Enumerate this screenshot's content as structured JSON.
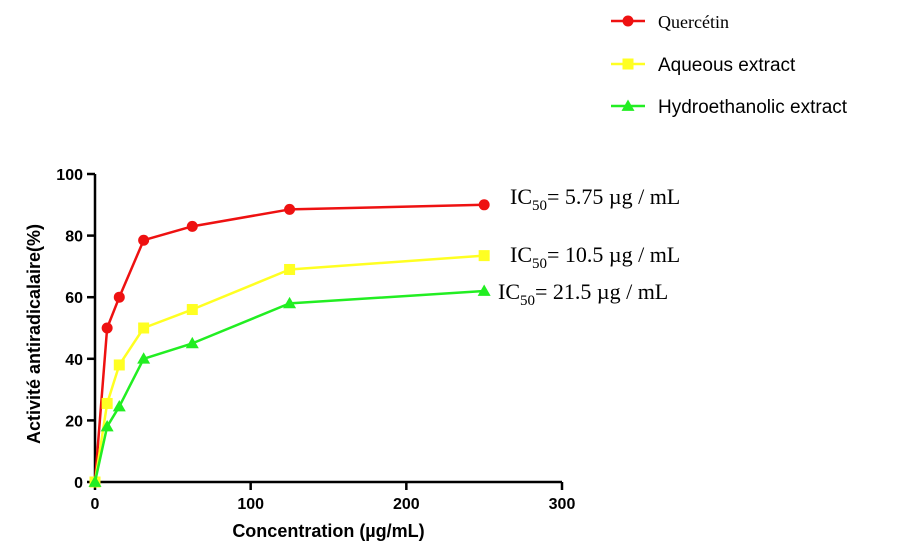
{
  "chart_data": {
    "type": "line",
    "xlabel": "Concentration (µg/mL)",
    "ylabel": "Activité antiradicalaire(%)",
    "xlim": [
      0,
      300
    ],
    "ylim": [
      0,
      100
    ],
    "xticks": [
      0,
      100,
      200,
      300
    ],
    "yticks": [
      0,
      20,
      40,
      60,
      80,
      100
    ],
    "grid": false,
    "legend_position": "top-right",
    "series": [
      {
        "name": "Quercétin",
        "color": "#ee1111",
        "marker": "circle",
        "x": [
          0,
          7.8,
          15.6,
          31.25,
          62.5,
          125,
          250
        ],
        "y": [
          0,
          50,
          60,
          78.5,
          83,
          88.5,
          90
        ],
        "annotation": {
          "prefix": "IC",
          "sub": "50",
          "suffix": "= 5.75 µg / mL"
        }
      },
      {
        "name": "Aqueous extract",
        "color": "#ffff22",
        "marker": "square",
        "x": [
          0,
          7.8,
          15.6,
          31.25,
          62.5,
          125,
          250
        ],
        "y": [
          0,
          25.5,
          38,
          50,
          56,
          69,
          73.5
        ],
        "annotation": {
          "prefix": "IC",
          "sub": "50",
          "suffix": "= 10.5 µg / mL"
        }
      },
      {
        "name": "Hydroethanolic extract",
        "color": "#22ee22",
        "marker": "triangle",
        "x": [
          0,
          7.8,
          15.6,
          31.25,
          62.5,
          125,
          250
        ],
        "y": [
          0,
          18,
          24.5,
          40,
          45,
          58,
          62
        ],
        "annotation": {
          "prefix": "IC",
          "sub": "50",
          "suffix": "= 21.5 µg / mL"
        }
      }
    ]
  }
}
